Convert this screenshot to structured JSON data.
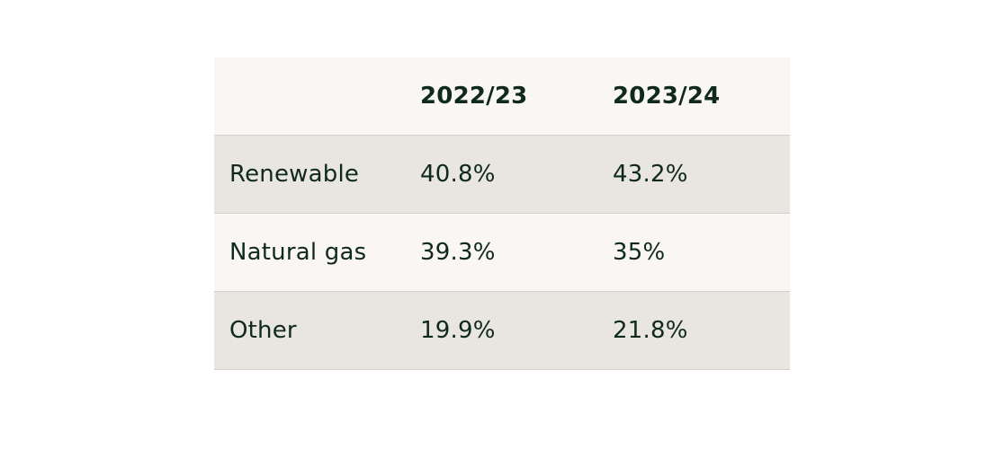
{
  "table": {
    "header": [
      "2022/23",
      "2023/24"
    ],
    "rows": [
      {
        "label": "Renewable",
        "cells": [
          "40.8%",
          "43.2%"
        ]
      },
      {
        "label": "Natural gas",
        "cells": [
          "39.3%",
          "35%"
        ]
      },
      {
        "label": "Other",
        "cells": [
          "19.9%",
          "21.8%"
        ]
      }
    ]
  }
}
